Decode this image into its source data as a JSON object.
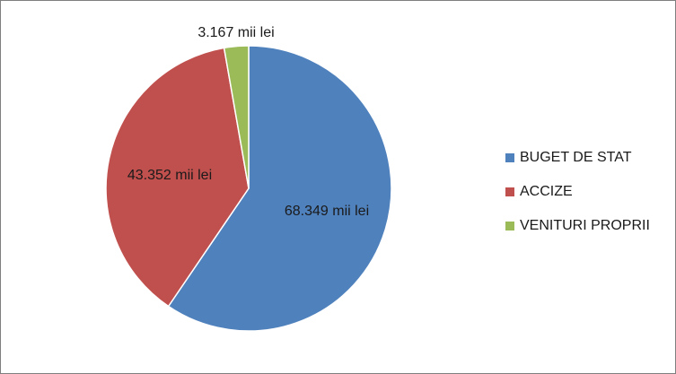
{
  "chart_data": {
    "type": "pie",
    "categories": [
      "BUGET DE STAT",
      "ACCIZE",
      "VENITURI PROPRII"
    ],
    "values": [
      68349,
      43352,
      3167
    ],
    "data_labels": [
      "68.349 mii lei",
      "43.352 mii lei",
      "3.167 mii lei"
    ],
    "colors": [
      "#4f81bd",
      "#c0504d",
      "#9bbb59"
    ],
    "title": "",
    "legend_position": "right"
  }
}
